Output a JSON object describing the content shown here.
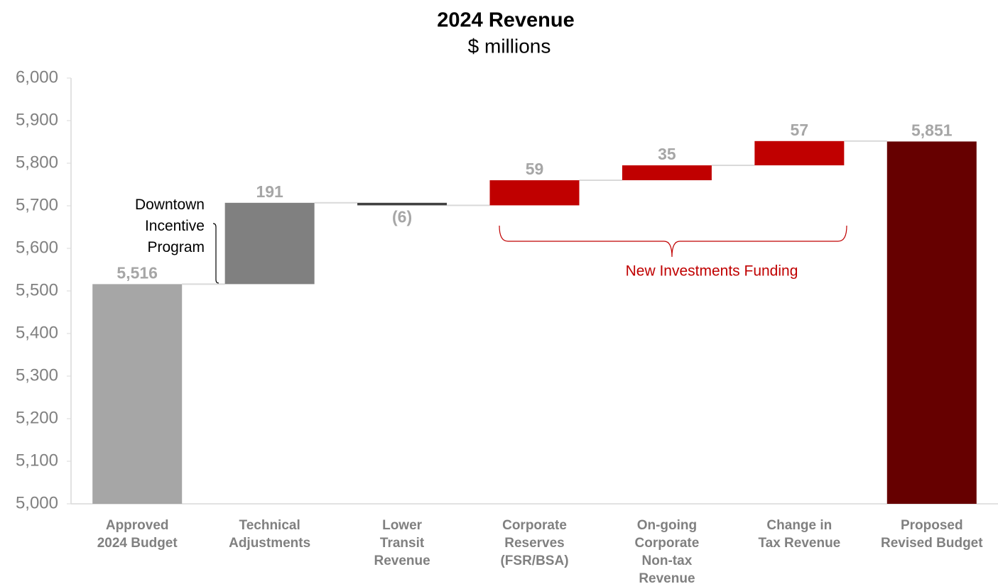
{
  "chart_data": {
    "type": "waterfall",
    "title": "2024 Revenue",
    "subtitle": "$ millions",
    "categories": [
      "Approved\n2024 Budget",
      "Technical\nAdjustments",
      "Lower\nTransit\nRevenue",
      "Corporate\nReserves\n(FSR/BSA)",
      "On-going\nCorporate\nNon-tax\nRevenue",
      "Change in\nTax Revenue",
      "Proposed\nRevised Budget"
    ],
    "values": [
      5516,
      191,
      -6,
      59,
      35,
      57,
      5851
    ],
    "value_labels": [
      "5,516",
      "191",
      "(6)",
      "59",
      "35",
      "57",
      "5,851"
    ],
    "kinds": [
      "total",
      "delta",
      "delta",
      "delta",
      "delta",
      "delta",
      "total"
    ],
    "colors": [
      "#a6a6a6",
      "#808080",
      "#404040",
      "#c00000",
      "#c00000",
      "#c00000",
      "#660000"
    ],
    "ylim": [
      5000,
      6000
    ],
    "yticks": [
      {
        "value": 5000,
        "label": "5,000"
      },
      {
        "value": 5100,
        "label": "5,100"
      },
      {
        "value": 5200,
        "label": "5,200"
      },
      {
        "value": 5300,
        "label": "5,300"
      },
      {
        "value": 5400,
        "label": "5,400"
      },
      {
        "value": 5500,
        "label": "5,500"
      },
      {
        "value": 5600,
        "label": "5,600"
      },
      {
        "value": 5700,
        "label": "5,700"
      },
      {
        "value": 5800,
        "label": "5,800"
      },
      {
        "value": 5900,
        "label": "5,900"
      },
      {
        "value": 6000,
        "label": "6,000"
      }
    ],
    "annotations": [
      "Downtown\nIncentive\nProgram",
      "New Investments Funding"
    ]
  }
}
